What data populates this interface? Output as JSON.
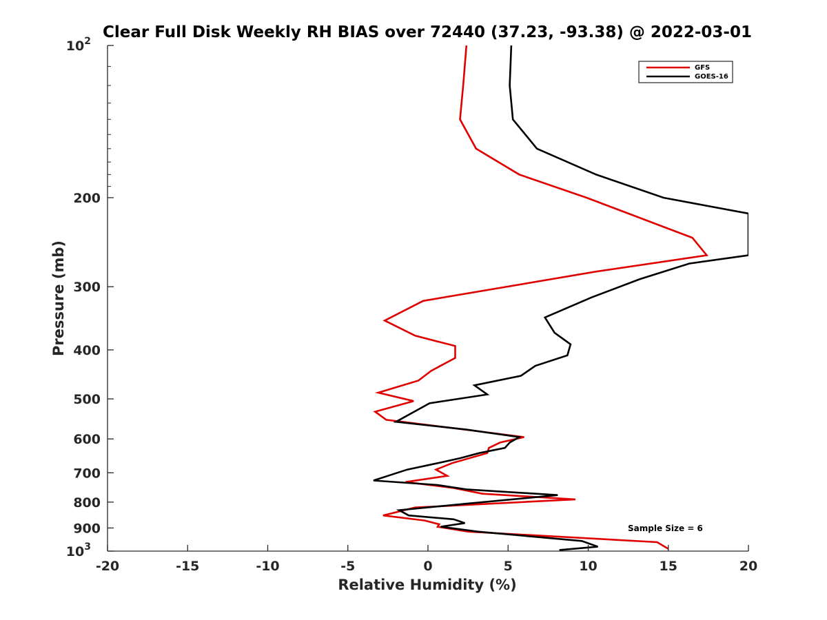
{
  "chart_data": {
    "type": "line",
    "title": "Clear Full Disk Weekly RH BIAS over 72440 (37.23, -93.38) @ 2022-03-01",
    "xlabel": "Relative Humidity (%)",
    "ylabel": "Pressure (mb)",
    "xlim": [
      -20,
      20
    ],
    "ylim": [
      100,
      1000
    ],
    "y_scale": "log",
    "y_reversed": true,
    "grid": false,
    "legend_position": "top-right",
    "x_ticks": [
      "-20",
      "-15",
      "-10",
      "-5",
      "0",
      "5",
      "10",
      "15",
      "20"
    ],
    "y_ticks": [
      {
        "value": 100,
        "base": "10",
        "exp": "2"
      },
      {
        "value": 200,
        "label": "200"
      },
      {
        "value": 300,
        "label": "300"
      },
      {
        "value": 400,
        "label": "400"
      },
      {
        "value": 500,
        "label": "500"
      },
      {
        "value": 600,
        "label": "600"
      },
      {
        "value": 700,
        "label": "700"
      },
      {
        "value": 800,
        "label": "800"
      },
      {
        "value": 900,
        "label": "900"
      },
      {
        "value": 1000,
        "base": "10",
        "exp": "3"
      }
    ],
    "annotation": "Sample Size = 6",
    "series": [
      {
        "name": "GFS",
        "color": "#e00000",
        "points": [
          [
            2.4,
            100
          ],
          [
            2.2,
            120
          ],
          [
            2.0,
            140
          ],
          [
            3.0,
            160
          ],
          [
            5.7,
            180
          ],
          [
            9.9,
            200
          ],
          [
            16.5,
            240
          ],
          [
            17.4,
            260
          ],
          [
            10.5,
            280
          ],
          [
            -0.3,
            320
          ],
          [
            -2.7,
            350
          ],
          [
            -0.8,
            375
          ],
          [
            1.7,
            393
          ],
          [
            1.7,
            415
          ],
          [
            0.2,
            440
          ],
          [
            -0.6,
            460
          ],
          [
            -3.1,
            486
          ],
          [
            -0.9,
            505
          ],
          [
            -3.3,
            530
          ],
          [
            -2.6,
            550
          ],
          [
            2.3,
            575
          ],
          [
            6.0,
            595
          ],
          [
            4.5,
            610
          ],
          [
            3.8,
            625
          ],
          [
            3.7,
            640
          ],
          [
            1.5,
            670
          ],
          [
            0.5,
            690
          ],
          [
            1.2,
            710
          ],
          [
            -1.4,
            730
          ],
          [
            1.6,
            750
          ],
          [
            3.4,
            770
          ],
          [
            9.2,
            790
          ],
          [
            -0.8,
            820
          ],
          [
            -2.8,
            850
          ],
          [
            -0.2,
            870
          ],
          [
            0.7,
            885
          ],
          [
            0.6,
            895
          ],
          [
            2.5,
            915
          ],
          [
            14.3,
            960
          ],
          [
            15.0,
            990
          ]
        ]
      },
      {
        "name": "GOES-16",
        "color": "#000000",
        "points": [
          [
            5.2,
            100
          ],
          [
            5.1,
            120
          ],
          [
            5.3,
            140
          ],
          [
            6.8,
            160
          ],
          [
            10.5,
            180
          ],
          [
            14.7,
            200
          ],
          [
            20.0,
            215
          ],
          [
            20.0,
            260
          ],
          [
            16.3,
            270
          ],
          [
            13.2,
            290
          ],
          [
            10.2,
            315
          ],
          [
            7.3,
            345
          ],
          [
            7.9,
            370
          ],
          [
            8.9,
            390
          ],
          [
            8.7,
            410
          ],
          [
            6.7,
            430
          ],
          [
            5.8,
            450
          ],
          [
            2.9,
            470
          ],
          [
            3.7,
            490
          ],
          [
            0.1,
            510
          ],
          [
            -2.0,
            555
          ],
          [
            2.4,
            575
          ],
          [
            5.7,
            595
          ],
          [
            5.1,
            610
          ],
          [
            4.8,
            625
          ],
          [
            3.2,
            640
          ],
          [
            2.0,
            655
          ],
          [
            0.6,
            670
          ],
          [
            -1.3,
            690
          ],
          [
            -3.4,
            725
          ],
          [
            0.6,
            740
          ],
          [
            2.4,
            755
          ],
          [
            8.1,
            775
          ],
          [
            2.5,
            805
          ],
          [
            -1.8,
            830
          ],
          [
            -1.2,
            850
          ],
          [
            1.6,
            865
          ],
          [
            2.3,
            880
          ],
          [
            0.8,
            895
          ],
          [
            3.1,
            915
          ],
          [
            9.6,
            955
          ],
          [
            10.6,
            980
          ],
          [
            8.2,
            995
          ]
        ]
      }
    ]
  }
}
